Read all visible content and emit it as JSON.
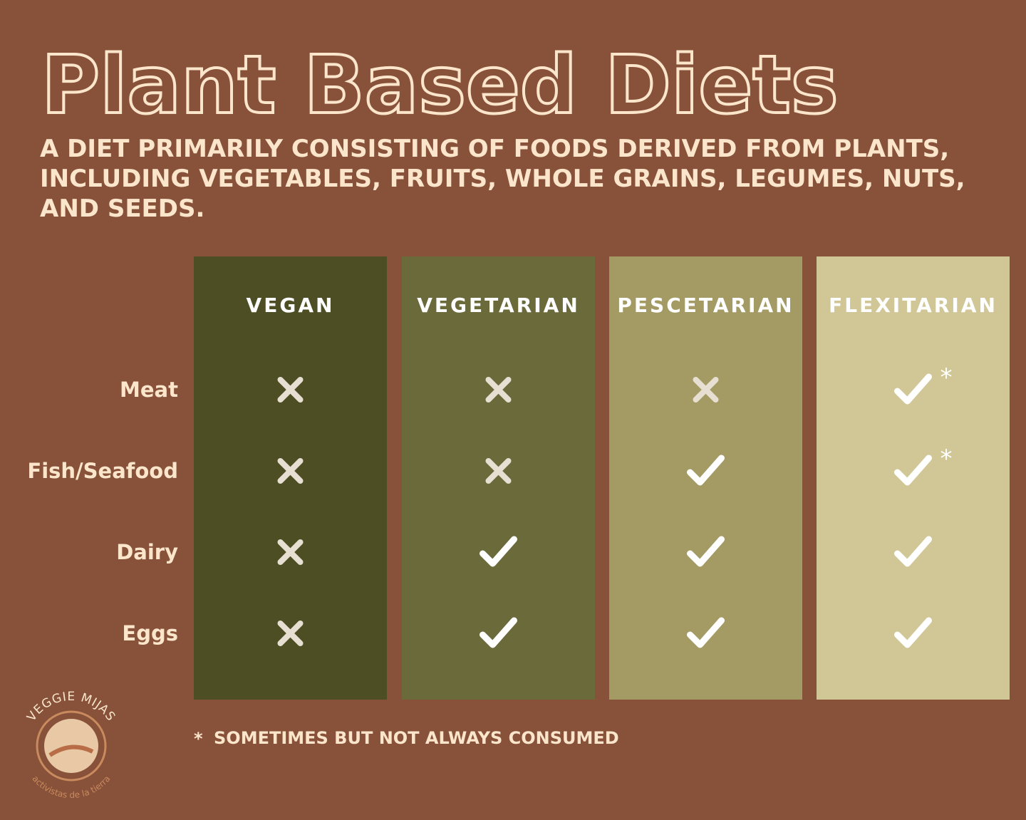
{
  "header": {
    "title": "Plant Based Diets",
    "subtitle": "A DIET PRIMARILY CONSISTING OF FOODS DERIVED FROM PLANTS, INCLUDING VEGETABLES, FRUITS, WHOLE GRAINS, LEGUMES, NUTS, AND SEEDS."
  },
  "table": {
    "columns": [
      {
        "name": "VEGAN",
        "color": "#4d4e24"
      },
      {
        "name": "VEGETARIAN",
        "color": "#6b6a3b"
      },
      {
        "name": "PESCETARIAN",
        "color": "#a39a64"
      },
      {
        "name": "FLEXITARIAN",
        "color": "#d1c696"
      }
    ],
    "rows": [
      {
        "label": "Meat",
        "cells": [
          {
            "consumed": false
          },
          {
            "consumed": false
          },
          {
            "consumed": false
          },
          {
            "consumed": true,
            "note": "*"
          }
        ]
      },
      {
        "label": "Fish/Seafood",
        "cells": [
          {
            "consumed": false
          },
          {
            "consumed": false
          },
          {
            "consumed": true
          },
          {
            "consumed": true,
            "note": "*"
          }
        ]
      },
      {
        "label": "Dairy",
        "cells": [
          {
            "consumed": false
          },
          {
            "consumed": true
          },
          {
            "consumed": true
          },
          {
            "consumed": true
          }
        ]
      },
      {
        "label": "Eggs",
        "cells": [
          {
            "consumed": false
          },
          {
            "consumed": true
          },
          {
            "consumed": true
          },
          {
            "consumed": true
          }
        ]
      }
    ]
  },
  "footnote": {
    "symbol": "*",
    "text": "SOMETIMES BUT NOT ALWAYS CONSUMED"
  },
  "logo": {
    "name": "VEGGIE MIJAS",
    "tagline": "activistas de la tierra"
  }
}
